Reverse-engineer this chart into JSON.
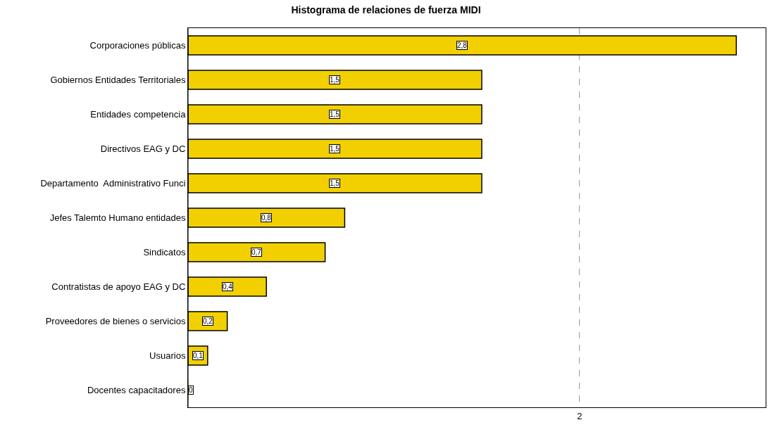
{
  "chart_data": {
    "type": "bar",
    "orientation": "horizontal",
    "title": "Histograma de relaciones de fuerza MIDI",
    "categories": [
      "Corporaciones públicas",
      "Gobiernos Entidades Territoriales",
      "Entidades competencia",
      "Directivos EAG y DC",
      "Departamento  Administrativo Funci",
      "Jefes Talemto Humano entidades",
      "Sindicatos",
      "Contratistas de apoyo EAG y DC",
      "Proveedores de bienes o servicios",
      "Usuarios",
      "Docentes capacitadores"
    ],
    "values": [
      2.8,
      1.5,
      1.5,
      1.5,
      1.5,
      0.8,
      0.7,
      0.4,
      0.2,
      0.1,
      0
    ],
    "value_labels": [
      "2,8",
      "1,5",
      "1,5",
      "1,5",
      "1,5",
      "0,8",
      "0,7",
      "0,4",
      "0,2",
      "0,1",
      "0"
    ],
    "color": "#f2d000",
    "xlim": [
      0,
      2.95
    ],
    "xticks": [
      2
    ],
    "grid": "x"
  }
}
